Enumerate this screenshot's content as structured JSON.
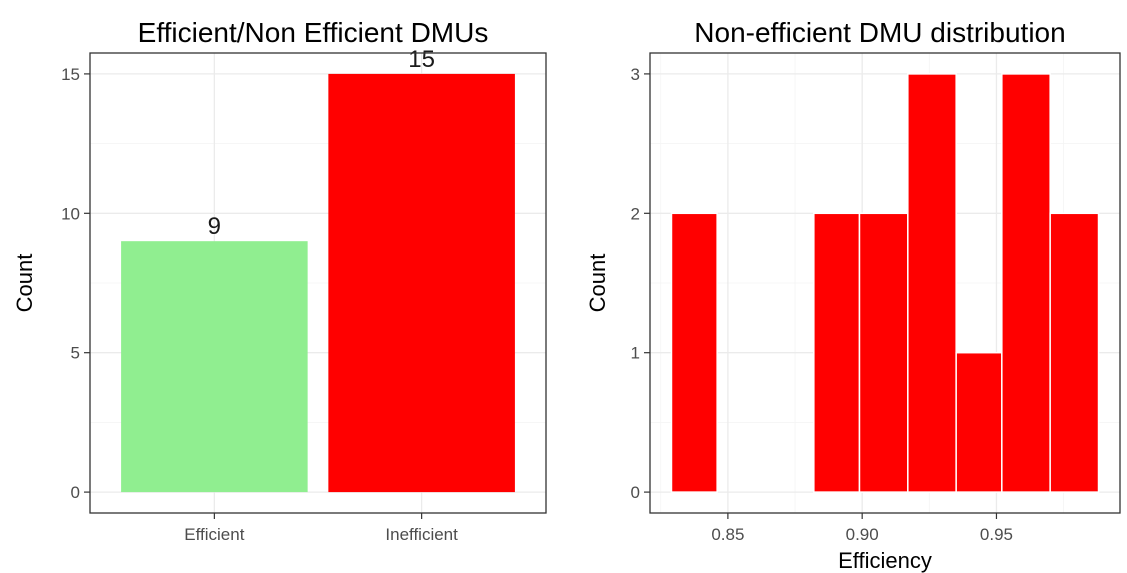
{
  "chart_data": [
    {
      "type": "bar",
      "title": "Efficient/Non Efficient DMUs",
      "xlabel": "",
      "ylabel": "Count",
      "categories": [
        "Efficient",
        "Inefficient"
      ],
      "values": [
        9,
        15
      ],
      "data_labels": [
        "9",
        "15"
      ],
      "colors": [
        "#90ee90",
        "#ff0000"
      ],
      "ylim": [
        -0.75,
        15.75
      ],
      "yticks": [
        0,
        5,
        10,
        15
      ],
      "ytick_labels": [
        "0",
        "5",
        "10",
        "15"
      ],
      "grid": true
    },
    {
      "type": "bar",
      "subtype": "histogram",
      "title": "Non-efficient DMU distribution",
      "xlabel": "Efficiency",
      "ylabel": "Count",
      "bins": [
        {
          "x0": 0.829,
          "x1": 0.846,
          "count": 2
        },
        {
          "x0": 0.846,
          "x1": 0.864,
          "count": 0
        },
        {
          "x0": 0.864,
          "x1": 0.882,
          "count": 0
        },
        {
          "x0": 0.882,
          "x1": 0.899,
          "count": 2
        },
        {
          "x0": 0.899,
          "x1": 0.917,
          "count": 2
        },
        {
          "x0": 0.917,
          "x1": 0.935,
          "count": 3
        },
        {
          "x0": 0.935,
          "x1": 0.952,
          "count": 1
        },
        {
          "x0": 0.952,
          "x1": 0.97,
          "count": 3
        },
        {
          "x0": 0.97,
          "x1": 0.988,
          "count": 2
        }
      ],
      "bar_color": "#ff0000",
      "bar_outline": "#ffffff",
      "xlim": [
        0.821,
        0.996
      ],
      "ylim": [
        -0.15,
        3.15
      ],
      "xticks": [
        0.85,
        0.9,
        0.95
      ],
      "xtick_labels": [
        "0.85",
        "0.90",
        "0.95"
      ],
      "yticks": [
        0,
        1,
        2,
        3
      ],
      "ytick_labels": [
        "0",
        "1",
        "2",
        "3"
      ],
      "grid": true
    }
  ]
}
